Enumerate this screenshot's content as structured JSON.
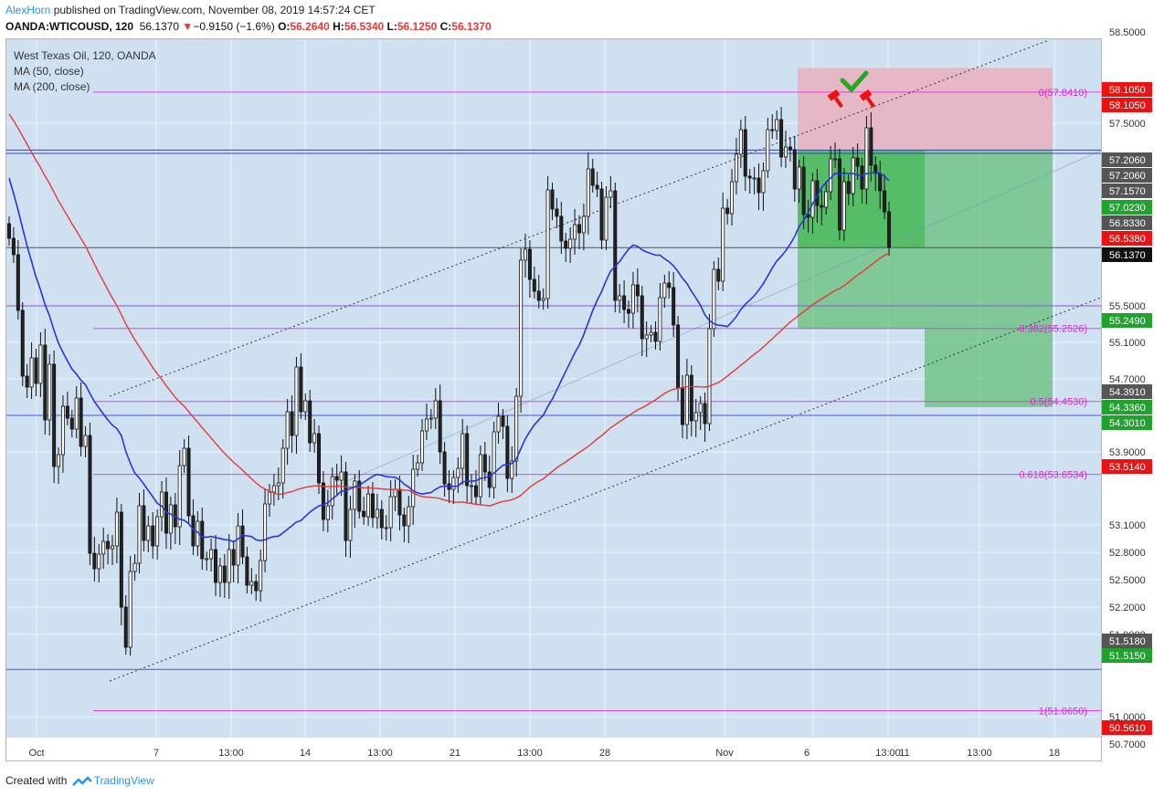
{
  "header": {
    "author": "AlexHorn",
    "published_text": "published on TradingView.com, November 08, 2019 14:57:24 CET",
    "symbol": "OANDA:WTICOUSD, 120",
    "last_price": "56.1370",
    "change": "−0.9150 (−1.6%)",
    "open_label": "O:",
    "open": "56.2640",
    "high_label": "H:",
    "high": "56.5340",
    "low_label": "L:",
    "low": "56.1250",
    "close_label": "C:",
    "close": "56.1370"
  },
  "legend": {
    "title": "West Texas Oil, 120, OANDA",
    "ma50": "MA (50, close)",
    "ma200": "MA (200, close)"
  },
  "footer": {
    "created_with": "Created with",
    "brand": "TradingView"
  },
  "colors": {
    "background": "#cfe1f1",
    "up_candle": "#ffffff",
    "down_candle": "#222222",
    "ma50": "#2b35d6",
    "ma200": "#e53935",
    "fib": "#dd22dd",
    "stop_zone": "#e8b3c0",
    "target_zone": "#3fb54f",
    "check": "#22aa22",
    "marker": "#ee1111"
  },
  "chart_data": {
    "type": "candlestick",
    "y_axis": {
      "ticks": [
        "58.5000",
        "57.5000",
        "55.5000",
        "55.1000",
        "54.7000",
        "53.9000",
        "53.1000",
        "52.8000",
        "52.5000",
        "52.2000",
        "51.9000",
        "51.0000",
        "50.7000"
      ],
      "ylim": [
        50.4,
        58.8
      ]
    },
    "x_axis": {
      "ticks": [
        "Oct",
        "7",
        "13:00",
        "14",
        "13:00",
        "21",
        "13:00",
        "28",
        "Nov",
        "6",
        "13:00",
        "11",
        "13:00",
        "18"
      ]
    },
    "price_labels": [
      {
        "value": "58.1050",
        "bg": "#ee1111"
      },
      {
        "value": "58.1050",
        "bg": "#ee1111"
      },
      {
        "value": "57.2060",
        "bg": "#555555"
      },
      {
        "value": "57.2060",
        "bg": "#555555"
      },
      {
        "value": "57.1570",
        "bg": "#555555"
      },
      {
        "value": "57.0230",
        "bg": "#21a12e"
      },
      {
        "value": "56.8330",
        "bg": "#555555"
      },
      {
        "value": "56.5380",
        "bg": "#ee1111"
      },
      {
        "value": "56.1370",
        "bg": "#111111"
      },
      {
        "value": "55.2490",
        "bg": "#21a12e"
      },
      {
        "value": "54.3910",
        "bg": "#555555"
      },
      {
        "value": "54.3360",
        "bg": "#21a12e"
      },
      {
        "value": "54.3010",
        "bg": "#21a12e"
      },
      {
        "value": "53.5140",
        "bg": "#ee1111"
      },
      {
        "value": "51.5180",
        "bg": "#555555"
      },
      {
        "value": "51.5150",
        "bg": "#21a12e"
      },
      {
        "value": "50.5610",
        "bg": "#ee1111"
      }
    ],
    "fib_levels": [
      {
        "label": "0(57.8410)",
        "price": 57.841
      },
      {
        "label": "0.382(55.2526)",
        "price": 55.2526
      },
      {
        "label": "0.5(54.4530)",
        "price": 54.453
      },
      {
        "label": "0.618(53.6534)",
        "price": 53.6534
      },
      {
        "label": "1(51.0650)",
        "price": 51.065
      }
    ],
    "horizontal_lines": [
      57.206,
      57.17,
      56.137,
      55.5,
      54.3,
      51.518
    ],
    "candles": {
      "count": 217,
      "closes": [
        56.24,
        56.06,
        55.45,
        54.73,
        54.61,
        54.93,
        54.65,
        55.07,
        54.25,
        54.86,
        53.74,
        53.87,
        54.4,
        54.27,
        54.15,
        54.49,
        53.96,
        54.08,
        52.79,
        52.62,
        52.78,
        52.92,
        52.84,
        52.87,
        53.24,
        52.2,
        51.76,
        52.59,
        52.68,
        53.31,
        52.93,
        53.09,
        52.87,
        53.19,
        53.46,
        53.01,
        53.32,
        53.08,
        53.75,
        53.94,
        53.2,
        52.87,
        53.14,
        52.73,
        52.73,
        52.83,
        52.47,
        52.65,
        52.47,
        52.83,
        52.66,
        53.09,
        52.75,
        52.44,
        52.48,
        52.38,
        52.71,
        53.33,
        53.46,
        53.53,
        53.56,
        53.94,
        54.34,
        54.08,
        54.83,
        54.34,
        54.46,
        54.0,
        54.1,
        53.56,
        53.16,
        53.31,
        53.63,
        53.59,
        53.68,
        52.93,
        53.27,
        53.58,
        53.25,
        53.19,
        53.44,
        53.18,
        53.27,
        53.07,
        53.07,
        53.41,
        53.49,
        53.21,
        53.09,
        53.3,
        53.71,
        53.78,
        54.13,
        54.26,
        54.27,
        54.46,
        53.9,
        53.55,
        53.49,
        53.62,
        53.72,
        54.1,
        53.53,
        53.53,
        53.41,
        53.87,
        53.68,
        53.51,
        54.12,
        54.29,
        54.18,
        53.61,
        53.8,
        54.51,
        56.0,
        56.12,
        55.79,
        55.66,
        55.56,
        55.58,
        56.77,
        56.56,
        56.48,
        56.21,
        56.13,
        56.23,
        56.39,
        56.3,
        56.48,
        57.0,
        56.82,
        56.78,
        56.22,
        56.69,
        56.76,
        55.56,
        55.61,
        55.46,
        55.42,
        55.73,
        55.61,
        55.14,
        55.18,
        55.21,
        55.11,
        55.59,
        55.75,
        55.7,
        55.29,
        54.6,
        54.2,
        54.74,
        54.24,
        54.33,
        54.43,
        54.21,
        55.25,
        55.9,
        55.77,
        56.57,
        56.51,
        56.86,
        57.16,
        57.43,
        56.92,
        56.9,
        56.9,
        56.74,
        56.98,
        57.43,
        57.42,
        57.54,
        57.13,
        57.24,
        57.21,
        56.78,
        57.02,
        56.5,
        56.47,
        56.87,
        56.6,
        56.58,
        56.75,
        57.11,
        57.11,
        56.33,
        56.86,
        56.73,
        57.12,
        57.03,
        56.78,
        57.45,
        57.04,
        56.95,
        56.76,
        56.53,
        56.14
      ],
      "note_closes": "closes sampled from the drawn candles"
    },
    "ma50_label": "MA (50, close)",
    "ma200_label": "MA (200, close)"
  }
}
